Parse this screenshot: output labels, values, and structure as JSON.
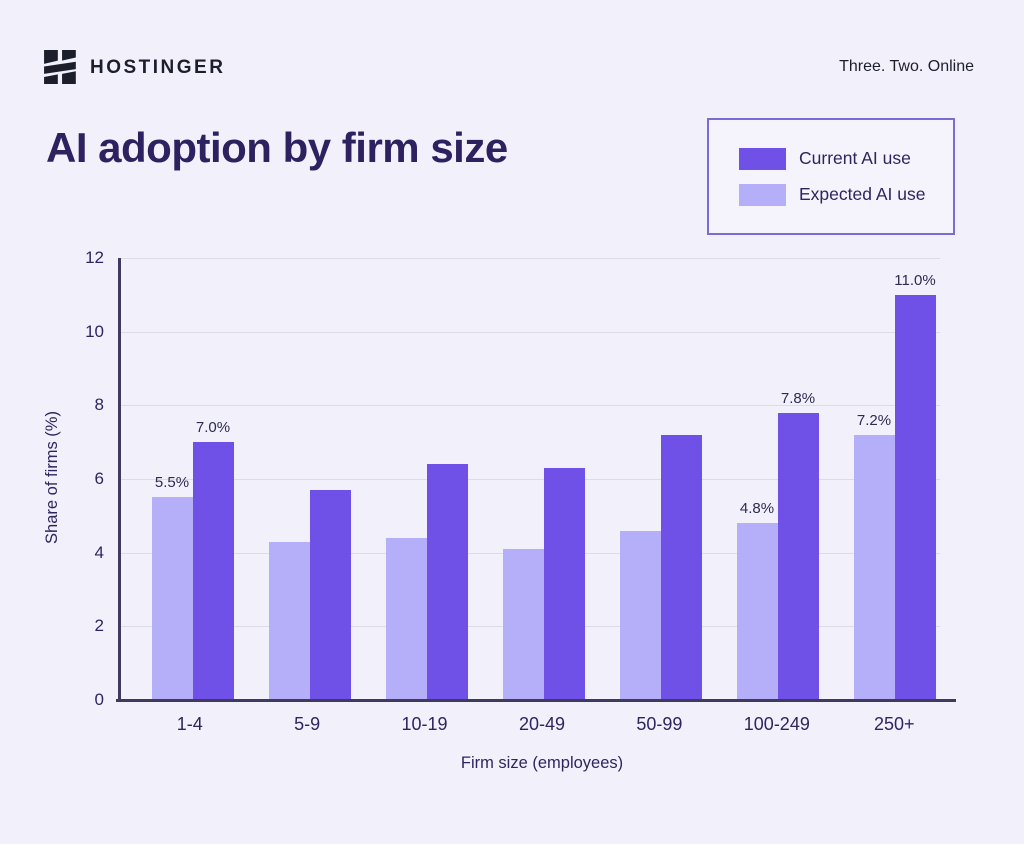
{
  "header": {
    "brand": "HOSTINGER",
    "tagline": "Three. Two. Online"
  },
  "title": "AI adoption by firm size",
  "legend": {
    "items": [
      {
        "label": "Current AI use",
        "color": "#6F51E7"
      },
      {
        "label": "Expected AI use",
        "color": "#B5AFFA"
      }
    ]
  },
  "chart_data": {
    "type": "bar",
    "title": "AI adoption by firm size",
    "categories": [
      "1-4",
      "5-9",
      "10-19",
      "20-49",
      "50-99",
      "100-249",
      "250+"
    ],
    "series": [
      {
        "name": "Expected AI use",
        "color": "#B5AFFA",
        "values": [
          5.5,
          4.3,
          4.4,
          4.1,
          4.6,
          4.8,
          7.2
        ],
        "labels": [
          "5.5%",
          "",
          "",
          "",
          "",
          "4.8%",
          "7.2%"
        ]
      },
      {
        "name": "Current AI use",
        "color": "#6F51E7",
        "values": [
          7.0,
          5.7,
          6.4,
          6.3,
          7.2,
          7.8,
          11.0
        ],
        "labels": [
          "7.0%",
          "",
          "",
          "",
          "",
          "7.8%",
          "11.0%"
        ]
      }
    ],
    "xlabel": "Firm size (employees)",
    "ylabel": "Share of firms (%)",
    "ylim": [
      0,
      12
    ],
    "yticks": [
      0,
      2,
      4,
      6,
      8,
      10,
      12
    ],
    "grid": true,
    "legend_position": "top-right"
  },
  "colors": {
    "background": "#F2F1FB",
    "bar_current": "#6F51E7",
    "bar_expected": "#B5AFFA",
    "axis_line": "#3F3A60",
    "gridline": "#DCDBEA",
    "text_dark": "#1D1E2C",
    "text_chart": "#2E2560",
    "legend_border": "#7D6AD6",
    "legend_background": "#F5F4FD"
  }
}
